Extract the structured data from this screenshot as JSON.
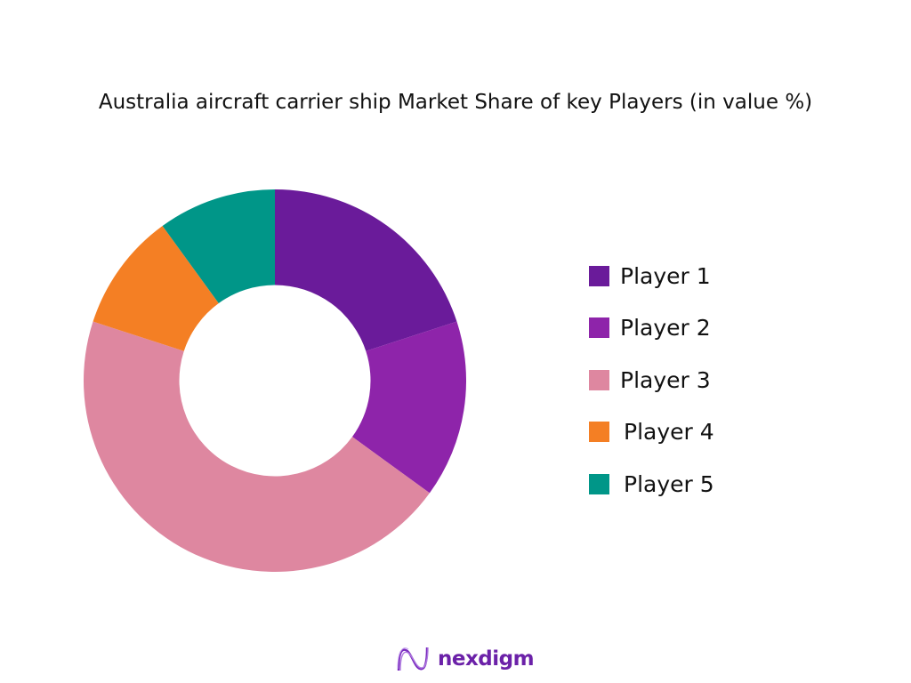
{
  "title": "Australia aircraft carrier ship Market Share of key Players (in value %)",
  "chart_data": {
    "type": "pie",
    "variant": "donut",
    "title": "Australia aircraft carrier ship Market Share of key Players (in value %)",
    "categories": [
      "Player 1",
      "Player 2",
      "Player 3",
      "Player 4",
      "Player 5"
    ],
    "values": [
      20,
      15,
      45,
      10,
      10
    ],
    "colors": [
      "#6a1b9a",
      "#8e24aa",
      "#de87a0",
      "#f47f24",
      "#009688"
    ],
    "start_angle_deg": 0,
    "direction": "clockwise",
    "inner_radius_ratio": 0.5,
    "legend_position": "right",
    "data_labels": false
  },
  "legend": {
    "items": [
      {
        "label": "Player 1",
        "color": "#6a1b9a"
      },
      {
        "label": "Player 2",
        "color": "#8e24aa"
      },
      {
        "label": "Player 3",
        "color": "#de87a0"
      },
      {
        "label": "Player 4",
        "color": "#f47f24"
      },
      {
        "label": "Player 5",
        "color": "#009688"
      }
    ]
  },
  "brand": {
    "name": "nexdigm",
    "icon": "nexdigm-wave-logo-icon",
    "color": "#6b21a8"
  }
}
